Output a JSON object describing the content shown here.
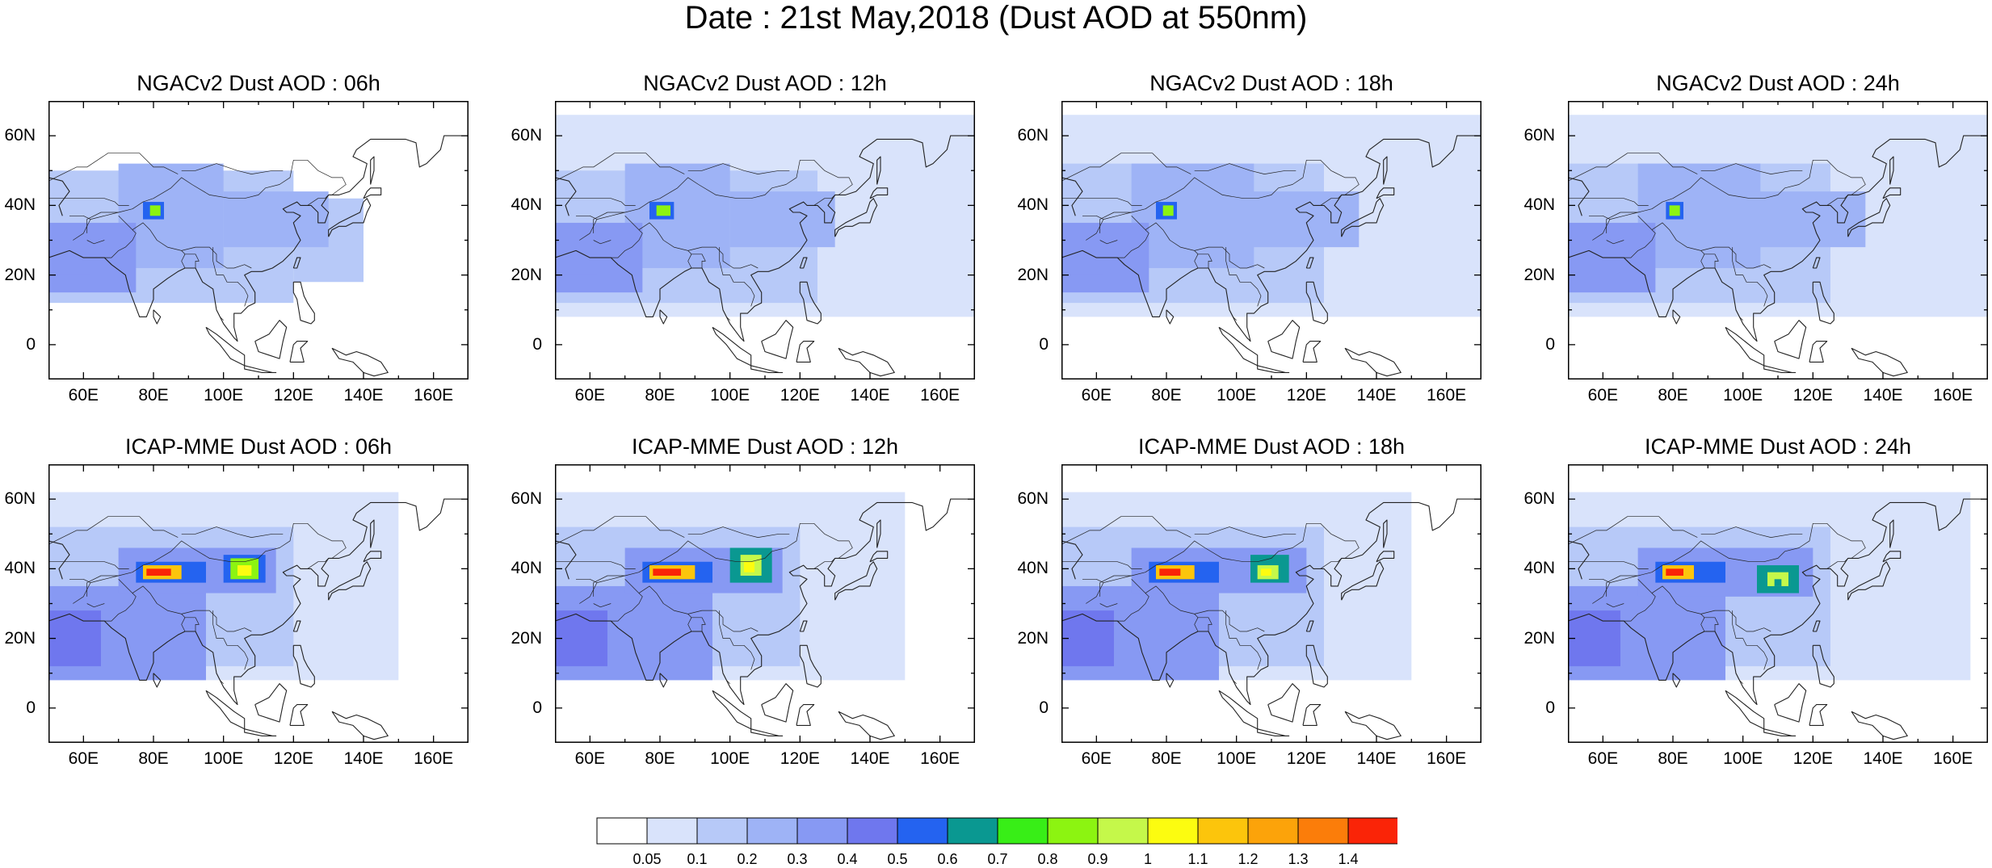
{
  "title": "Date : 21st May,2018 (Dust AOD at 550nm)",
  "chart_data": {
    "type": "heatmap",
    "variable": "Dust AOD at 550nm",
    "lon_range": [
      50,
      170
    ],
    "lat_range": [
      -10,
      70
    ],
    "lat_ticks": [
      "60N",
      "40N",
      "20N",
      "0"
    ],
    "lon_ticks": [
      "60E",
      "80E",
      "100E",
      "120E",
      "140E",
      "160E"
    ],
    "colorbar": {
      "levels": [
        "0.05",
        "0.1",
        "0.2",
        "0.3",
        "0.4",
        "0.5",
        "0.6",
        "0.7",
        "0.8",
        "0.9",
        "1",
        "1.1",
        "1.2",
        "1.3",
        "1.4"
      ],
      "colors": [
        "#ffffff",
        "#d9e3fb",
        "#b7c9f8",
        "#9eb3f6",
        "#8799f3",
        "#6f77ee",
        "#2463f0",
        "#0a9891",
        "#38ee17",
        "#8cf411",
        "#c5f84a",
        "#fcfc10",
        "#fcc50c",
        "#fca30a",
        "#fb7d0a",
        "#fa2407"
      ]
    },
    "panels": [
      {
        "title": "NGACv2 Dust AOD : 06h",
        "model": "NGACv2",
        "lead": "06h",
        "blobs": [
          {
            "lon": [
              50,
              170
            ],
            "lat": [
              -10,
              70
            ],
            "v": 0.02
          },
          {
            "lon": [
              50,
              120
            ],
            "lat": [
              12,
              50
            ],
            "v": 0.15
          },
          {
            "lon": [
              120,
              140
            ],
            "lat": [
              18,
              42
            ],
            "v": 0.12
          },
          {
            "lon": [
              70,
              100
            ],
            "lat": [
              22,
              52
            ],
            "v": 0.25
          },
          {
            "lon": [
              50,
              75
            ],
            "lat": [
              15,
              35
            ],
            "v": 0.3
          },
          {
            "lon": [
              100,
              130
            ],
            "lat": [
              28,
              44
            ],
            "v": 0.22
          },
          {
            "lon": [
              50,
              62
            ],
            "lat": [
              20,
              30
            ],
            "v": 0.35
          },
          {
            "lon": [
              77,
              83
            ],
            "lat": [
              36,
              41
            ],
            "v": 0.55
          },
          {
            "lon": [
              79,
              82
            ],
            "lat": [
              37,
              40
            ],
            "v": 0.85
          }
        ]
      },
      {
        "title": "NGACv2 Dust AOD : 12h",
        "model": "NGACv2",
        "lead": "12h",
        "blobs": [
          {
            "lon": [
              50,
              170
            ],
            "lat": [
              -10,
              70
            ],
            "v": 0.02
          },
          {
            "lon": [
              50,
              170
            ],
            "lat": [
              8,
              66
            ],
            "v": 0.08
          },
          {
            "lon": [
              50,
              125
            ],
            "lat": [
              12,
              50
            ],
            "v": 0.15
          },
          {
            "lon": [
              70,
              100
            ],
            "lat": [
              22,
              52
            ],
            "v": 0.25
          },
          {
            "lon": [
              50,
              75
            ],
            "lat": [
              15,
              35
            ],
            "v": 0.3
          },
          {
            "lon": [
              100,
              130
            ],
            "lat": [
              28,
              44
            ],
            "v": 0.22
          },
          {
            "lon": [
              50,
              62
            ],
            "lat": [
              20,
              30
            ],
            "v": 0.35
          },
          {
            "lon": [
              77,
              84
            ],
            "lat": [
              36,
              41
            ],
            "v": 0.55
          },
          {
            "lon": [
              79,
              83
            ],
            "lat": [
              37,
              40
            ],
            "v": 0.85
          }
        ]
      },
      {
        "title": "NGACv2 Dust AOD : 18h",
        "model": "NGACv2",
        "lead": "18h",
        "blobs": [
          {
            "lon": [
              50,
              170
            ],
            "lat": [
              -10,
              70
            ],
            "v": 0.02
          },
          {
            "lon": [
              50,
              170
            ],
            "lat": [
              8,
              66
            ],
            "v": 0.08
          },
          {
            "lon": [
              50,
              125
            ],
            "lat": [
              12,
              52
            ],
            "v": 0.15
          },
          {
            "lon": [
              70,
              105
            ],
            "lat": [
              22,
              52
            ],
            "v": 0.25
          },
          {
            "lon": [
              50,
              75
            ],
            "lat": [
              15,
              35
            ],
            "v": 0.3
          },
          {
            "lon": [
              100,
              135
            ],
            "lat": [
              28,
              44
            ],
            "v": 0.22
          },
          {
            "lon": [
              50,
              62
            ],
            "lat": [
              20,
              30
            ],
            "v": 0.35
          },
          {
            "lon": [
              77,
              83
            ],
            "lat": [
              36,
              41
            ],
            "v": 0.55
          },
          {
            "lon": [
              79,
              82
            ],
            "lat": [
              37,
              40
            ],
            "v": 0.85
          }
        ]
      },
      {
        "title": "NGACv2 Dust AOD : 24h",
        "model": "NGACv2",
        "lead": "24h",
        "blobs": [
          {
            "lon": [
              50,
              170
            ],
            "lat": [
              -10,
              70
            ],
            "v": 0.02
          },
          {
            "lon": [
              50,
              170
            ],
            "lat": [
              8,
              66
            ],
            "v": 0.08
          },
          {
            "lon": [
              50,
              125
            ],
            "lat": [
              12,
              52
            ],
            "v": 0.15
          },
          {
            "lon": [
              70,
              105
            ],
            "lat": [
              22,
              52
            ],
            "v": 0.25
          },
          {
            "lon": [
              50,
              75
            ],
            "lat": [
              15,
              35
            ],
            "v": 0.3
          },
          {
            "lon": [
              100,
              135
            ],
            "lat": [
              28,
              44
            ],
            "v": 0.22
          },
          {
            "lon": [
              50,
              62
            ],
            "lat": [
              18,
              30
            ],
            "v": 0.38
          },
          {
            "lon": [
              78,
              83
            ],
            "lat": [
              36,
              41
            ],
            "v": 0.55
          },
          {
            "lon": [
              79,
              82
            ],
            "lat": [
              37,
              40
            ],
            "v": 0.85
          }
        ]
      },
      {
        "title": "ICAP-MME Dust AOD : 06h",
        "model": "ICAP-MME",
        "lead": "06h",
        "blobs": [
          {
            "lon": [
              50,
              170
            ],
            "lat": [
              -10,
              70
            ],
            "v": 0.02
          },
          {
            "lon": [
              50,
              150
            ],
            "lat": [
              8,
              62
            ],
            "v": 0.08
          },
          {
            "lon": [
              50,
              120
            ],
            "lat": [
              12,
              52
            ],
            "v": 0.15
          },
          {
            "lon": [
              50,
              95
            ],
            "lat": [
              8,
              35
            ],
            "v": 0.3
          },
          {
            "lon": [
              70,
              115
            ],
            "lat": [
              33,
              46
            ],
            "v": 0.3
          },
          {
            "lon": [
              50,
              65
            ],
            "lat": [
              12,
              28
            ],
            "v": 0.42
          },
          {
            "lon": [
              75,
              95
            ],
            "lat": [
              36,
              42
            ],
            "v": 0.55
          },
          {
            "lon": [
              100,
              112
            ],
            "lat": [
              36,
              44
            ],
            "v": 0.55
          },
          {
            "lon": [
              77,
              88
            ],
            "lat": [
              37,
              41
            ],
            "v": 1.1
          },
          {
            "lon": [
              78,
              85
            ],
            "lat": [
              38,
              40
            ],
            "v": 1.45
          },
          {
            "lon": [
              102,
              110
            ],
            "lat": [
              37,
              43
            ],
            "v": 0.85
          },
          {
            "lon": [
              104,
              108
            ],
            "lat": [
              38,
              41
            ],
            "v": 1.05
          }
        ]
      },
      {
        "title": "ICAP-MME Dust AOD : 12h",
        "model": "ICAP-MME",
        "lead": "12h",
        "blobs": [
          {
            "lon": [
              50,
              170
            ],
            "lat": [
              -10,
              70
            ],
            "v": 0.02
          },
          {
            "lon": [
              50,
              150
            ],
            "lat": [
              8,
              62
            ],
            "v": 0.08
          },
          {
            "lon": [
              50,
              120
            ],
            "lat": [
              12,
              52
            ],
            "v": 0.15
          },
          {
            "lon": [
              50,
              95
            ],
            "lat": [
              8,
              35
            ],
            "v": 0.3
          },
          {
            "lon": [
              70,
              115
            ],
            "lat": [
              33,
              46
            ],
            "v": 0.3
          },
          {
            "lon": [
              50,
              65
            ],
            "lat": [
              12,
              28
            ],
            "v": 0.42
          },
          {
            "lon": [
              75,
              95
            ],
            "lat": [
              36,
              42
            ],
            "v": 0.55
          },
          {
            "lon": [
              100,
              112
            ],
            "lat": [
              36,
              46
            ],
            "v": 0.6
          },
          {
            "lon": [
              77,
              90
            ],
            "lat": [
              37,
              41
            ],
            "v": 1.1
          },
          {
            "lon": [
              78,
              86
            ],
            "lat": [
              38,
              40
            ],
            "v": 1.45
          },
          {
            "lon": [
              103,
              109
            ],
            "lat": [
              38,
              44
            ],
            "v": 0.9
          },
          {
            "lon": [
              104,
              107
            ],
            "lat": [
              39,
              42
            ],
            "v": 1.05
          }
        ]
      },
      {
        "title": "ICAP-MME Dust AOD : 18h",
        "model": "ICAP-MME",
        "lead": "18h",
        "blobs": [
          {
            "lon": [
              50,
              170
            ],
            "lat": [
              -10,
              70
            ],
            "v": 0.02
          },
          {
            "lon": [
              50,
              150
            ],
            "lat": [
              8,
              62
            ],
            "v": 0.08
          },
          {
            "lon": [
              50,
              125
            ],
            "lat": [
              12,
              52
            ],
            "v": 0.15
          },
          {
            "lon": [
              50,
              95
            ],
            "lat": [
              8,
              35
            ],
            "v": 0.3
          },
          {
            "lon": [
              70,
              120
            ],
            "lat": [
              33,
              46
            ],
            "v": 0.3
          },
          {
            "lon": [
              50,
              65
            ],
            "lat": [
              12,
              28
            ],
            "v": 0.42
          },
          {
            "lon": [
              75,
              95
            ],
            "lat": [
              36,
              42
            ],
            "v": 0.55
          },
          {
            "lon": [
              104,
              115
            ],
            "lat": [
              36,
              44
            ],
            "v": 0.6
          },
          {
            "lon": [
              77,
              88
            ],
            "lat": [
              37,
              41
            ],
            "v": 1.1
          },
          {
            "lon": [
              78,
              84
            ],
            "lat": [
              38,
              40
            ],
            "v": 1.45
          },
          {
            "lon": [
              106,
              112
            ],
            "lat": [
              37,
              41
            ],
            "v": 0.9
          },
          {
            "lon": [
              107,
              110
            ],
            "lat": [
              38,
              40
            ],
            "v": 1.02
          }
        ]
      },
      {
        "title": "ICAP-MME Dust AOD : 24h",
        "model": "ICAP-MME",
        "lead": "24h",
        "blobs": [
          {
            "lon": [
              50,
              170
            ],
            "lat": [
              -10,
              70
            ],
            "v": 0.02
          },
          {
            "lon": [
              50,
              165
            ],
            "lat": [
              8,
              62
            ],
            "v": 0.08
          },
          {
            "lon": [
              50,
              125
            ],
            "lat": [
              12,
              52
            ],
            "v": 0.15
          },
          {
            "lon": [
              50,
              95
            ],
            "lat": [
              8,
              35
            ],
            "v": 0.3
          },
          {
            "lon": [
              70,
              120
            ],
            "lat": [
              32,
              46
            ],
            "v": 0.3
          },
          {
            "lon": [
              50,
              65
            ],
            "lat": [
              12,
              28
            ],
            "v": 0.42
          },
          {
            "lon": [
              75,
              95
            ],
            "lat": [
              36,
              42
            ],
            "v": 0.55
          },
          {
            "lon": [
              104,
              116
            ],
            "lat": [
              33,
              41
            ],
            "v": 0.6
          },
          {
            "lon": [
              77,
              86
            ],
            "lat": [
              37,
              41
            ],
            "v": 1.1
          },
          {
            "lon": [
              78,
              83
            ],
            "lat": [
              38,
              40
            ],
            "v": 1.45
          },
          {
            "lon": [
              107,
              113
            ],
            "lat": [
              35,
              39
            ],
            "v": 0.9
          },
          {
            "lon": [
              109,
              111
            ],
            "lat": [
              35,
              37
            ],
            "v": 0.6
          }
        ]
      }
    ]
  }
}
